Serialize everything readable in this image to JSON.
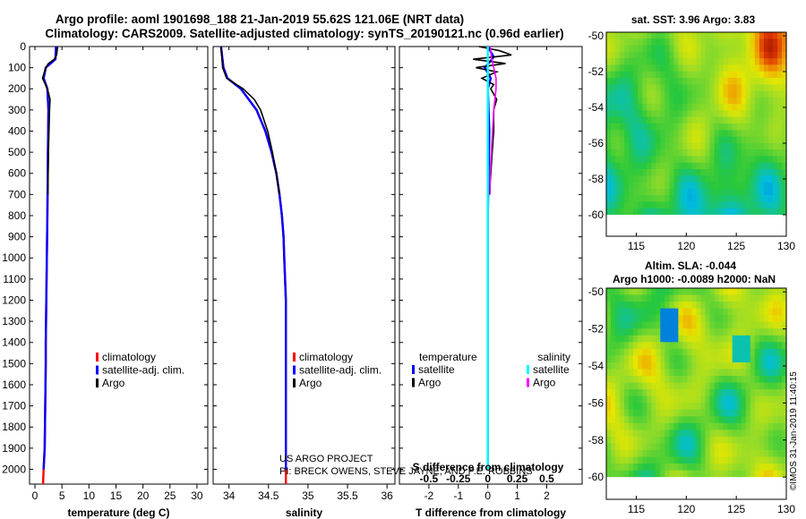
{
  "header": {
    "line1": "Argo profile: aoml 1901698_188 21-Jan-2019 55.62S 121.06E (NRT data)",
    "line2": "Climatology: CARS2009. Satellite-adjusted climatology: synTS_20190121.nc (0.96d earlier)"
  },
  "credits": {
    "line1": "US ARGO PROJECT",
    "line2": "PI: BRECK OWENS, STEVE JAYNE, AND P.E. ROBBINS",
    "stamp": "©IMOS 31-Jan-2019 11:40:15"
  },
  "chart_data": [
    {
      "type": "line",
      "id": "temperature",
      "xlabel": "temperature (deg C)",
      "ylabel": "",
      "xlim": [
        -1,
        32
      ],
      "ylim": [
        2070,
        0
      ],
      "xticks": [
        "0",
        "5",
        "10",
        "15",
        "20",
        "25",
        "30"
      ],
      "xtick_values": [
        0,
        5,
        10,
        15,
        20,
        25,
        30
      ],
      "yticks": [
        "0",
        "100",
        "200",
        "300",
        "400",
        "500",
        "600",
        "700",
        "800",
        "900",
        "1000",
        "1100",
        "1200",
        "1300",
        "1400",
        "1500",
        "1600",
        "1700",
        "1800",
        "1900",
        "2000"
      ],
      "ytick_values": [
        0,
        100,
        200,
        300,
        400,
        500,
        600,
        700,
        800,
        900,
        1000,
        1100,
        1200,
        1300,
        1400,
        1500,
        1600,
        1700,
        1800,
        1900,
        2000
      ],
      "legend": [
        "climatology",
        "satellite-adj. clim.",
        "Argo"
      ],
      "series": [
        {
          "name": "climatology",
          "color": "#ff0000",
          "depth": [
            0,
            60,
            100,
            150,
            200,
            300,
            500,
            800,
            1000,
            1200,
            1400,
            1500,
            1700,
            1900,
            2000,
            2070
          ],
          "values": [
            3.9,
            3.8,
            2.0,
            1.6,
            2.3,
            2.5,
            2.4,
            2.3,
            2.2,
            2.1,
            2.0,
            2.0,
            1.9,
            1.8,
            1.6,
            1.5
          ]
        },
        {
          "name": "satellite-adj. clim.",
          "color": "#0000ff",
          "depth": [
            0,
            60,
            100,
            150,
            200,
            300,
            500,
            800,
            1000,
            1200,
            1400,
            1500,
            1700,
            1900,
            2000
          ],
          "values": [
            3.9,
            3.8,
            2.0,
            1.6,
            2.3,
            2.5,
            2.4,
            2.3,
            2.2,
            2.1,
            2.0,
            2.0,
            1.9,
            1.8,
            1.6
          ]
        },
        {
          "name": "Argo",
          "color": "#000000",
          "depth": [
            0,
            20,
            40,
            60,
            80,
            100,
            150,
            200,
            250,
            300,
            400,
            500,
            700
          ],
          "values": [
            4.2,
            4.1,
            4.0,
            3.6,
            2.5,
            2.0,
            1.4,
            2.3,
            2.8,
            2.7,
            2.6,
            2.5,
            2.4
          ]
        }
      ]
    },
    {
      "type": "line",
      "id": "salinity",
      "xlabel": "salinity",
      "ylabel": "",
      "xlim": [
        33.8,
        36.1
      ],
      "ylim": [
        2070,
        0
      ],
      "xticks": [
        "34",
        "34.5",
        "35",
        "35.5",
        "36"
      ],
      "xtick_values": [
        34,
        34.5,
        35,
        35.5,
        36
      ],
      "legend": [
        "climatology",
        "satellite-adj. clim.",
        "Argo"
      ],
      "series": [
        {
          "name": "climatology",
          "color": "#ff0000",
          "depth": [
            0,
            100,
            150,
            200,
            300,
            400,
            500,
            600,
            700,
            800,
            900,
            1000,
            1200,
            1500,
            1800,
            2070
          ],
          "values": [
            33.9,
            33.93,
            33.98,
            34.15,
            34.35,
            34.46,
            34.54,
            34.6,
            34.64,
            34.67,
            34.69,
            34.7,
            34.72,
            34.72,
            34.72,
            34.72
          ]
        },
        {
          "name": "satellite-adj. clim.",
          "color": "#0000ff",
          "depth": [
            0,
            100,
            150,
            200,
            300,
            400,
            500,
            600,
            700,
            800,
            900,
            1000,
            1200,
            1500,
            1800,
            2000
          ],
          "values": [
            33.9,
            33.93,
            33.98,
            34.15,
            34.35,
            34.46,
            34.54,
            34.6,
            34.64,
            34.67,
            34.69,
            34.7,
            34.72,
            34.72,
            34.72,
            34.72
          ]
        },
        {
          "name": "Argo",
          "color": "#000000",
          "depth": [
            0,
            100,
            150,
            200,
            250,
            300,
            400,
            500,
            600,
            700
          ],
          "values": [
            33.9,
            33.92,
            33.97,
            34.18,
            34.32,
            34.4,
            34.49,
            34.55,
            34.6,
            34.64
          ]
        }
      ]
    },
    {
      "type": "line",
      "id": "difference",
      "xlabel": "T difference from climatology",
      "title": "S difference from climatology",
      "xlim": [
        -3,
        3.2
      ],
      "ylim": [
        2070,
        0
      ],
      "xticks": [
        "-2",
        "-1",
        "0",
        "1",
        "2"
      ],
      "xtick_values": [
        -2,
        -1,
        0,
        1,
        2
      ],
      "sticks": [
        "-0.5",
        "-0.25",
        "0",
        "0.25",
        "0.5"
      ],
      "stick_values": [
        -0.5,
        -0.25,
        0,
        0.25,
        0.5
      ],
      "legend_left_title": "temperature",
      "legend_right_title": "salinity",
      "legend_left": [
        "satellite",
        "Argo"
      ],
      "legend_right": [
        "satellite",
        "Argo"
      ],
      "series": [
        {
          "name": "T satellite",
          "color": "#0000ff",
          "depth": [
            0,
            50,
            100,
            150,
            200,
            400,
            800,
            1200,
            1600,
            2000
          ],
          "values": [
            0,
            0.2,
            -0.1,
            0.1,
            0,
            0.05,
            0,
            0,
            0,
            0
          ]
        },
        {
          "name": "T Argo",
          "color": "#000000",
          "depth": [
            0,
            20,
            40,
            60,
            80,
            100,
            120,
            150,
            180,
            200,
            250,
            300,
            400,
            500,
            600,
            700
          ],
          "values": [
            -0.3,
            0.4,
            0.8,
            -0.5,
            0.6,
            -0.4,
            0.3,
            -0.2,
            0.2,
            0.1,
            0.3,
            0.2,
            0.2,
            0.15,
            0.1,
            0.05
          ]
        },
        {
          "name": "S satellite",
          "color": "#00ffff",
          "depth": [
            0,
            100,
            200,
            400,
            800,
            1200,
            1600,
            2000
          ],
          "values": [
            0,
            0,
            0,
            0,
            0,
            0,
            0,
            0
          ]
        },
        {
          "name": "S Argo",
          "color": "#ff00ff",
          "depth": [
            0,
            50,
            100,
            150,
            200,
            250,
            300,
            400,
            500,
            600,
            700
          ],
          "values": [
            0.02,
            0.03,
            0.05,
            0.07,
            0.07,
            0.06,
            0.05,
            0.04,
            0.03,
            0.02,
            0.02
          ]
        }
      ]
    },
    {
      "type": "heatmap",
      "id": "sst-map",
      "title": "sat. SST: 3.96 Argo: 3.83",
      "xlim": [
        112,
        130
      ],
      "ylim": [
        -61.2,
        -49.8
      ],
      "xticks": [
        "115",
        "120",
        "125",
        "130"
      ],
      "xtick_values": [
        115,
        120,
        125,
        130
      ],
      "yticks": [
        "-50",
        "-52",
        "-54",
        "-56",
        "-58",
        "-60"
      ],
      "ytick_values": [
        -50,
        -52,
        -54,
        -56,
        -58,
        -60
      ]
    },
    {
      "type": "heatmap",
      "id": "sla-map",
      "title": "Altim. SLA: -0.044",
      "subtitle": "Argo h1000: -0.0089 h2000: NaN",
      "xlim": [
        112,
        130
      ],
      "ylim": [
        -61.2,
        -49.8
      ],
      "xticks": [
        "115",
        "120",
        "125",
        "130"
      ],
      "xtick_values": [
        115,
        120,
        125,
        130
      ],
      "yticks": [
        "-50",
        "-52",
        "-54",
        "-56",
        "-58",
        "-60"
      ],
      "ytick_values": [
        -50,
        -52,
        -54,
        -56,
        -58,
        -60
      ]
    }
  ]
}
